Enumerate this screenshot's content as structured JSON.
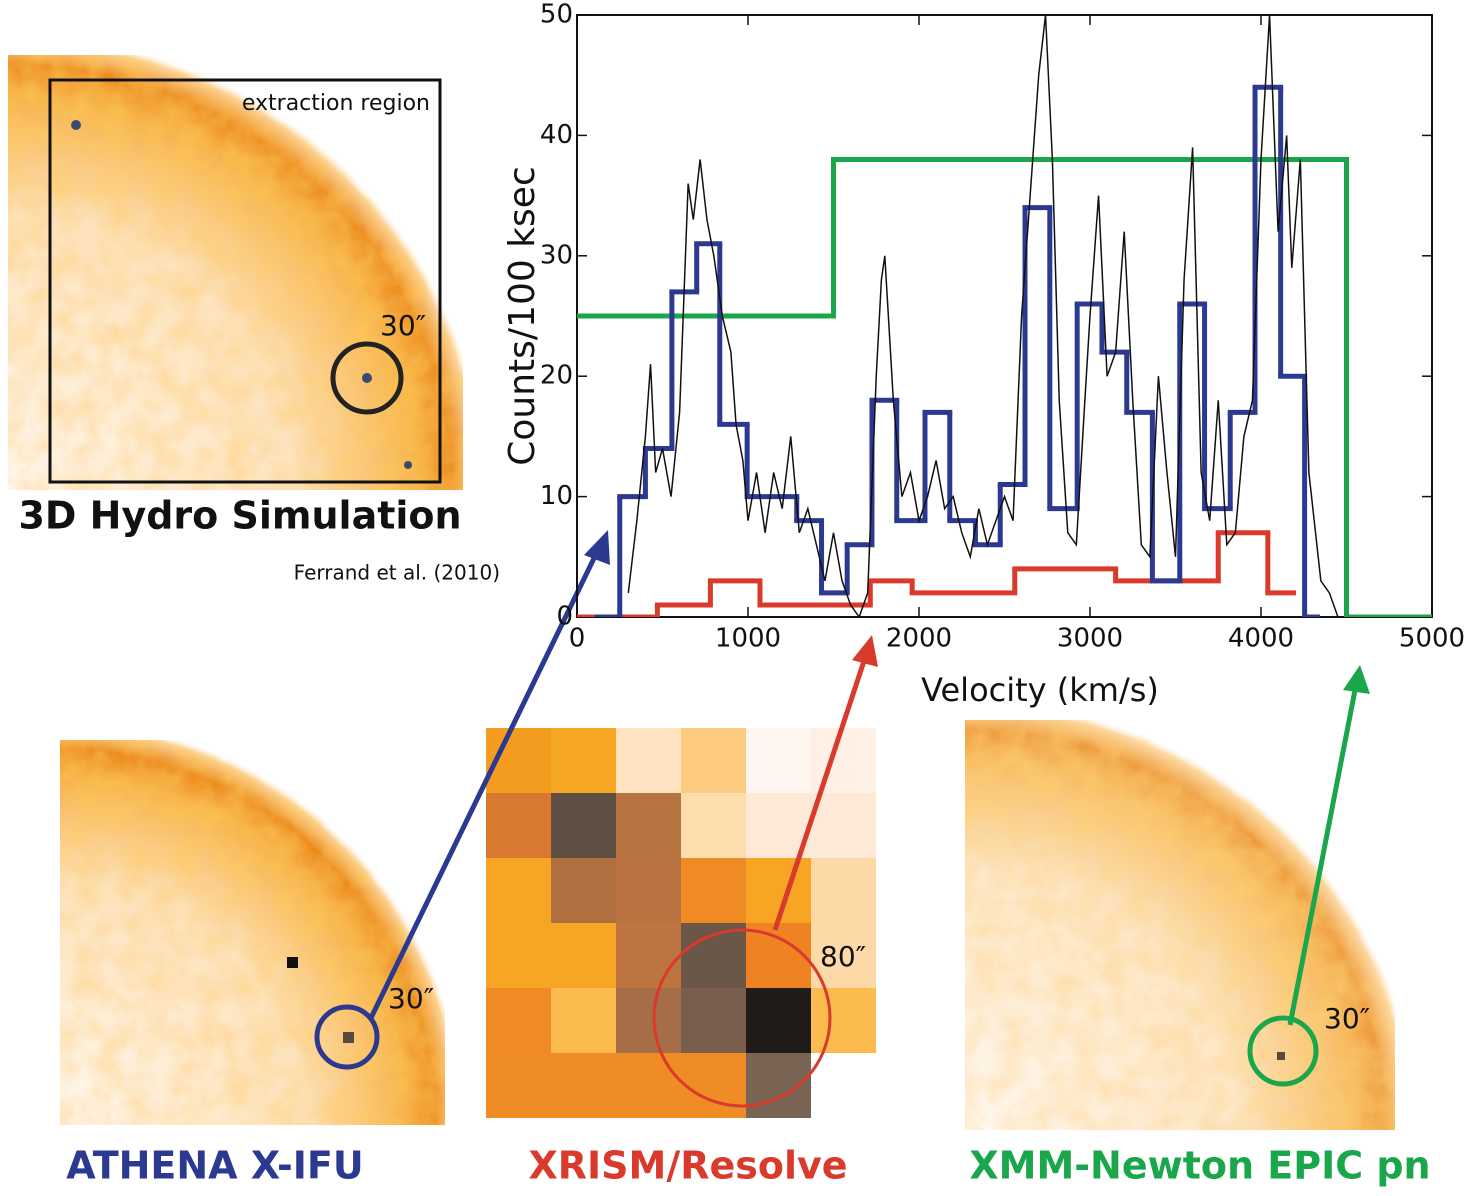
{
  "chart_data": {
    "type": "step",
    "y_label": "Counts/100 ksec",
    "x_label": "Velocity (km/s)",
    "xlim": [
      0,
      5000
    ],
    "ylim": [
      0,
      50
    ],
    "xticks": [
      0,
      1000,
      2000,
      3000,
      4000,
      5000
    ],
    "yticks": [
      0,
      10,
      20,
      30,
      40,
      50
    ],
    "series": [
      {
        "name": "XMM-Newton EPIC pn",
        "color": "#1aa64a",
        "bins": [
          0,
          1500,
          4500,
          5000
        ],
        "values": [
          25,
          38,
          0
        ]
      },
      {
        "name": "XRISM/Resolve",
        "color": "#d93a2b",
        "bins": [
          0,
          470,
          780,
          1070,
          1715,
          1960,
          2560,
          3150,
          3750,
          4040,
          4190
        ],
        "values": [
          0,
          1,
          3,
          1,
          3,
          2,
          4,
          3,
          7,
          2
        ]
      },
      {
        "name": "ATHENA X-IFU",
        "color": "#2b3990",
        "bins": [
          120,
          250,
          400,
          555,
          700,
          835,
          995,
          1285,
          1430,
          1580,
          1725,
          1870,
          2035,
          2180,
          2330,
          2475,
          2620,
          2765,
          2925,
          3070,
          3215,
          3365,
          3525,
          3670,
          3820,
          3965,
          4115,
          4255,
          4330
        ],
        "values": [
          0,
          10,
          14,
          27,
          31,
          16,
          10,
          8,
          2,
          6,
          18,
          8,
          17,
          8,
          6,
          11,
          34,
          9,
          26,
          22,
          17,
          3,
          26,
          9,
          17,
          44,
          20,
          0
        ]
      },
      {
        "color": "#111111",
        "line": true,
        "x": [
          300,
          350,
          400,
          430,
          460,
          500,
          550,
          600,
          650,
          680,
          720,
          760,
          800,
          850,
          900,
          930,
          970,
          1000,
          1050,
          1100,
          1150,
          1200,
          1250,
          1300,
          1350,
          1400,
          1450,
          1500,
          1550,
          1600,
          1650,
          1700,
          1750,
          1780,
          1800,
          1850,
          1900,
          1950,
          2000,
          2050,
          2100,
          2150,
          2200,
          2250,
          2300,
          2350,
          2400,
          2450,
          2500,
          2550,
          2600,
          2650,
          2700,
          2740,
          2780,
          2820,
          2870,
          2920,
          2970,
          3000,
          3050,
          3100,
          3150,
          3200,
          3250,
          3300,
          3350,
          3400,
          3450,
          3500,
          3550,
          3600,
          3650,
          3700,
          3750,
          3800,
          3850,
          3900,
          3950,
          4000,
          4050,
          4100,
          4150,
          4180,
          4230,
          4280,
          4350,
          4400,
          4450
        ],
        "values": [
          2,
          8,
          15,
          21,
          12,
          14,
          10,
          17,
          36,
          33,
          38,
          33,
          30,
          25,
          22,
          16,
          13,
          8,
          12,
          7,
          12,
          9,
          15,
          7,
          9,
          6,
          3,
          7,
          3,
          1,
          0,
          2,
          20,
          28,
          30,
          18,
          10,
          12,
          8,
          10,
          13,
          9,
          10,
          7,
          5,
          9,
          6,
          8,
          10,
          8,
          25,
          35,
          45,
          50,
          38,
          18,
          7,
          6,
          18,
          25,
          35,
          20,
          22,
          32,
          18,
          6,
          5,
          20,
          12,
          5,
          28,
          39,
          12,
          8,
          18,
          6,
          7,
          15,
          18,
          38,
          50,
          32,
          40,
          29,
          38,
          12,
          3,
          2,
          0
        ]
      }
    ],
    "annotations": [
      "extraction region",
      "30″",
      "3D Hydro Simulation",
      "Ferrand et al. (2010)",
      "30″",
      "80″",
      "30″"
    ]
  }
}
